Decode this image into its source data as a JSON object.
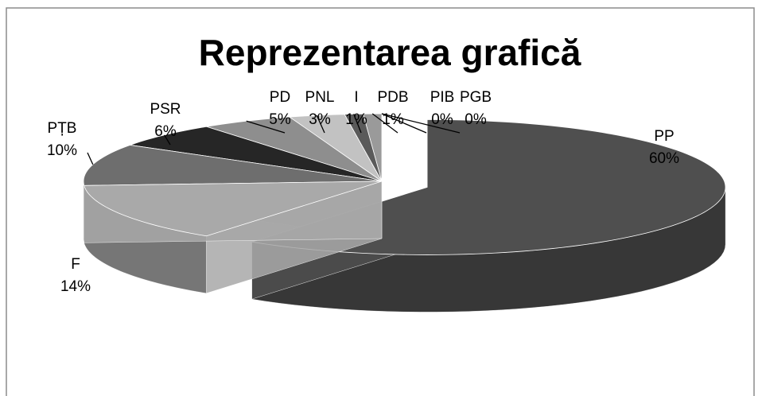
{
  "chart_data": {
    "type": "pie",
    "title": "Reprezentarea grafică",
    "categories": [
      "PP",
      "F",
      "PȚB",
      "PSR",
      "PD",
      "PNL",
      "I",
      "PDB",
      "PIB",
      "PGB"
    ],
    "values": [
      60,
      14,
      10,
      6,
      5,
      3,
      1,
      1,
      0,
      0
    ],
    "value_labels": [
      "60%",
      "14%",
      "10%",
      "6%",
      "5%",
      "3%",
      "1%",
      "1%",
      "0%",
      "0%"
    ],
    "colors": [
      "#4f4f4f",
      "#a9a9a9",
      "#6e6e6e",
      "#262626",
      "#8e8e8e",
      "#c2c2c2",
      "#5a5a5a",
      "#9a9a9a",
      "#787878",
      "#cfcfcf"
    ]
  }
}
